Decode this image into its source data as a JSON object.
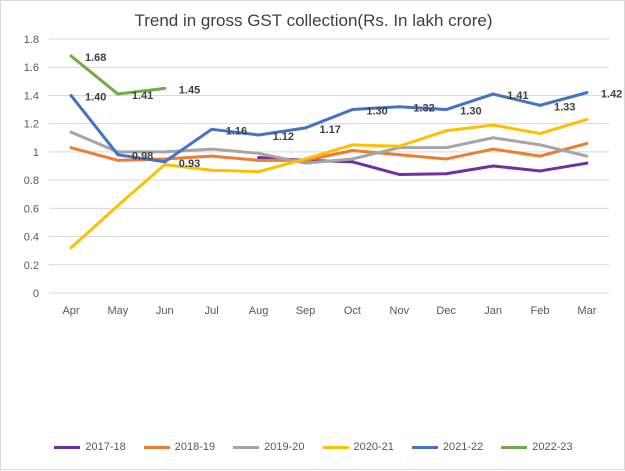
{
  "chart_data": {
    "type": "line",
    "title": "Trend in gross GST collection(Rs. In lakh crore)",
    "categories": [
      "Apr",
      "May",
      "Jun",
      "Jul",
      "Aug",
      "Sep",
      "Oct",
      "Nov",
      "Dec",
      "Jan",
      "Feb",
      "Mar"
    ],
    "ylim": [
      0,
      1.8
    ],
    "yticks": [
      "0",
      "0.2",
      "0.4",
      "0.6",
      "0.8",
      "1",
      "1.2",
      "1.4",
      "1.6",
      "1.8"
    ],
    "grid": true,
    "legend_position": "bottom",
    "series": [
      {
        "name": "2017-18",
        "color": "#7030a0",
        "values": [
          null,
          null,
          null,
          null,
          0.96,
          0.94,
          0.93,
          0.84,
          0.845,
          0.9,
          0.865,
          0.92
        ],
        "labels": false
      },
      {
        "name": "2018-19",
        "color": "#ed7d31",
        "values": [
          1.03,
          0.94,
          0.95,
          0.97,
          0.94,
          0.94,
          1.01,
          0.98,
          0.95,
          1.02,
          0.97,
          1.06
        ],
        "labels": false
      },
      {
        "name": "2019-20",
        "color": "#a5a5a5",
        "values": [
          1.14,
          1.0,
          1.0,
          1.02,
          0.99,
          0.92,
          0.95,
          1.03,
          1.03,
          1.1,
          1.05,
          0.97
        ],
        "labels": false
      },
      {
        "name": "2020-21",
        "color": "#ffc000",
        "values": [
          0.32,
          0.62,
          0.91,
          0.87,
          0.86,
          0.95,
          1.05,
          1.04,
          1.15,
          1.19,
          1.13,
          1.23
        ],
        "labels": false
      },
      {
        "name": "2021-22",
        "color": "#4472c4",
        "values": [
          1.4,
          0.98,
          0.93,
          1.16,
          1.12,
          1.17,
          1.3,
          1.32,
          1.3,
          1.41,
          1.33,
          1.42
        ],
        "labels": true,
        "label_text": [
          "1.40",
          "0.98",
          "0.93",
          "1.16",
          "1.12",
          "1.17",
          "1.30",
          "1.32",
          "1.30",
          "1.41",
          "1.33",
          "1.42"
        ]
      },
      {
        "name": "2022-23",
        "color": "#70ad47",
        "values": [
          1.68,
          1.41,
          1.45,
          null,
          null,
          null,
          null,
          null,
          null,
          null,
          null,
          null
        ],
        "labels": true,
        "label_text": [
          "1.68",
          "1.41",
          "1.45"
        ]
      }
    ]
  }
}
